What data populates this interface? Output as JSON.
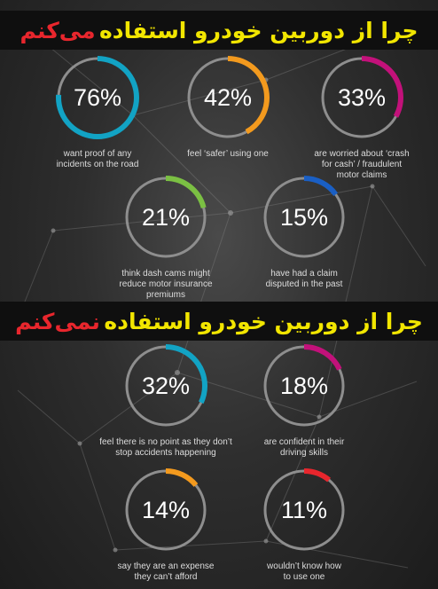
{
  "banners": [
    {
      "part1": "چرا از دوربین خودرو استفاده",
      "part2": "می‌کنم"
    },
    {
      "part1": "چرا از دوربین خودرو استفاده",
      "part2": "نمی‌کنم"
    }
  ],
  "colors": {
    "gold": "#f2e600",
    "red": "#e8262d",
    "cyan": "#12a3c4",
    "orange": "#f39a1e",
    "magenta": "#c2117a",
    "green": "#7bc043",
    "blue": "#1a5fc4",
    "ring_track": "#8e8e8e"
  },
  "chart_data": [
    {
      "type": "donut",
      "title": "چرا از دوربین خودرو استفاده می‌کنم",
      "items": [
        {
          "value": 76,
          "label": "76%",
          "caption": [
            "want proof of any",
            "incidents on the road"
          ],
          "color": "#12a3c4"
        },
        {
          "value": 42,
          "label": "42%",
          "caption": [
            "feel ‘safer’ using one"
          ],
          "color": "#f39a1e"
        },
        {
          "value": 33,
          "label": "33%",
          "caption": [
            "are worried about ‘crash",
            "for cash’ / fraudulent",
            "motor claims"
          ],
          "color": "#c2117a"
        },
        {
          "value": 21,
          "label": "21%",
          "caption": [
            "think dash cams might",
            "reduce motor insurance",
            "premiums"
          ],
          "color": "#7bc043"
        },
        {
          "value": 15,
          "label": "15%",
          "caption": [
            "have had a claim",
            "disputed in the past"
          ],
          "color": "#1a5fc4"
        }
      ]
    },
    {
      "type": "donut",
      "title": "چرا از دوربین خودرو استفاده نمی‌کنم",
      "items": [
        {
          "value": 32,
          "label": "32%",
          "caption": [
            "feel there is no point as they don’t",
            "stop accidents happening"
          ],
          "color": "#12a3c4"
        },
        {
          "value": 18,
          "label": "18%",
          "caption": [
            "are confident in their",
            "driving skills"
          ],
          "color": "#c2117a"
        },
        {
          "value": 14,
          "label": "14%",
          "caption": [
            "say they are an expense",
            "they can’t afford"
          ],
          "color": "#f39a1e"
        },
        {
          "value": 11,
          "label": "11%",
          "caption": [
            "wouldn’t know how",
            "to use one"
          ],
          "color": "#e8262d"
        }
      ]
    }
  ]
}
